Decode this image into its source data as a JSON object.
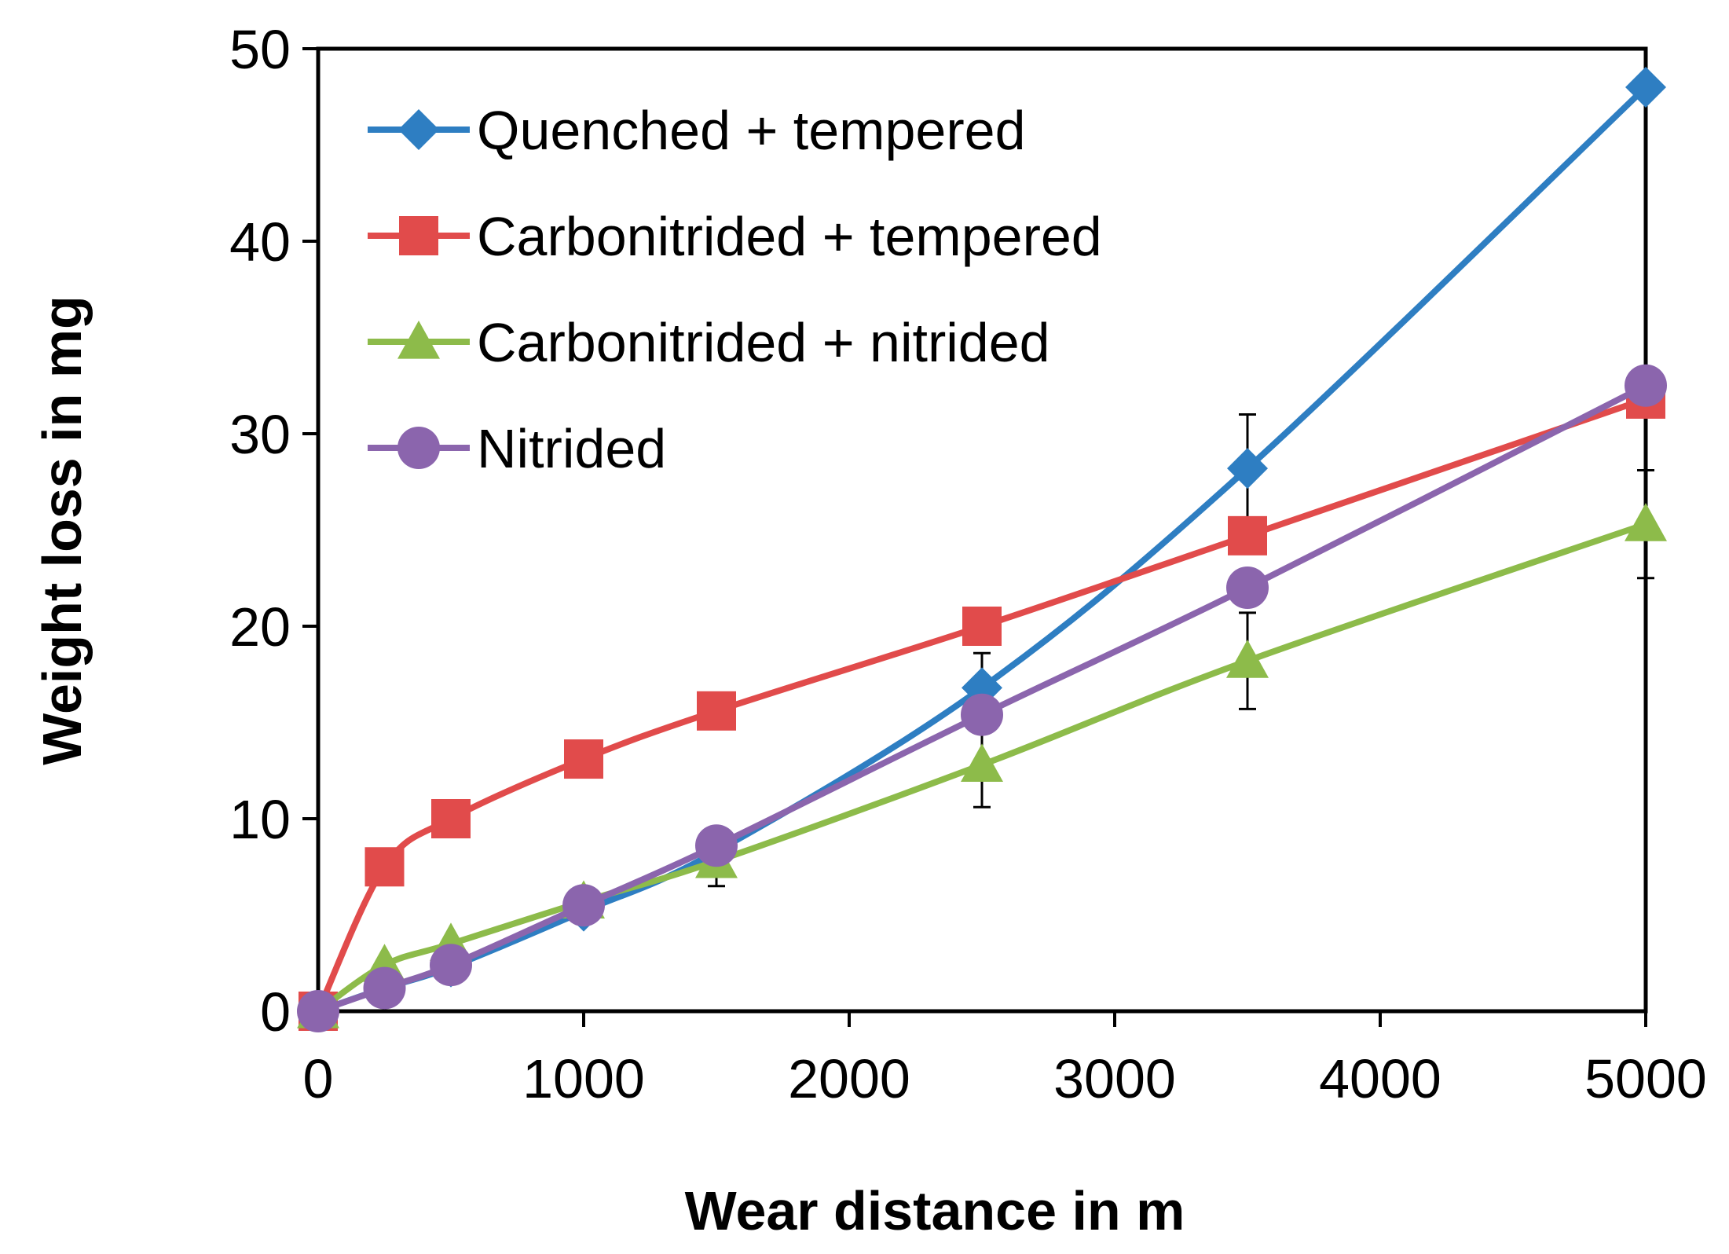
{
  "chart_data": {
    "type": "line",
    "title": "",
    "xlabel": "Wear distance in m",
    "ylabel": "Weight loss in mg",
    "xlim": [
      0,
      5000
    ],
    "ylim": [
      0,
      50
    ],
    "xticks": [
      0,
      1000,
      2000,
      3000,
      4000,
      5000
    ],
    "yticks": [
      0,
      10,
      20,
      30,
      40,
      50
    ],
    "grid": false,
    "legend_position": "top-left",
    "series": [
      {
        "name": "Quenched + tempered",
        "color": "#2E7EC2",
        "marker": "diamond",
        "x": [
          0,
          250,
          500,
          1000,
          1500,
          2500,
          3500,
          5000
        ],
        "y": [
          0,
          1.2,
          2.3,
          5.2,
          8.3,
          16.8,
          28.2,
          48.0
        ],
        "error": [
          0,
          0,
          0,
          0,
          0,
          1.8,
          2.8,
          0
        ]
      },
      {
        "name": "Carbonitrided + tempered",
        "color": "#E14B4B",
        "marker": "square",
        "x": [
          0,
          250,
          500,
          1000,
          1500,
          2500,
          3500,
          5000
        ],
        "y": [
          0,
          7.5,
          10.0,
          13.1,
          15.6,
          20.0,
          24.7,
          31.8
        ],
        "error": [
          0,
          0,
          0,
          0,
          0,
          0,
          0,
          0
        ]
      },
      {
        "name": "Carbonitrided + nitrided",
        "color": "#8DBB4A",
        "marker": "triangle",
        "x": [
          0,
          250,
          500,
          1000,
          1500,
          2500,
          3500,
          5000
        ],
        "y": [
          0,
          2.4,
          3.5,
          5.7,
          7.8,
          12.8,
          18.2,
          25.3
        ],
        "error": [
          0,
          0,
          0,
          0,
          1.3,
          2.2,
          2.5,
          2.8
        ]
      },
      {
        "name": "Nitrided",
        "color": "#8B65AD",
        "marker": "circle",
        "x": [
          0,
          250,
          500,
          1000,
          1500,
          2500,
          3500,
          5000
        ],
        "y": [
          0,
          1.2,
          2.4,
          5.5,
          8.6,
          15.4,
          22.0,
          32.5
        ],
        "error": [
          0,
          0,
          0,
          0.8,
          0,
          0,
          0,
          0
        ]
      }
    ]
  }
}
